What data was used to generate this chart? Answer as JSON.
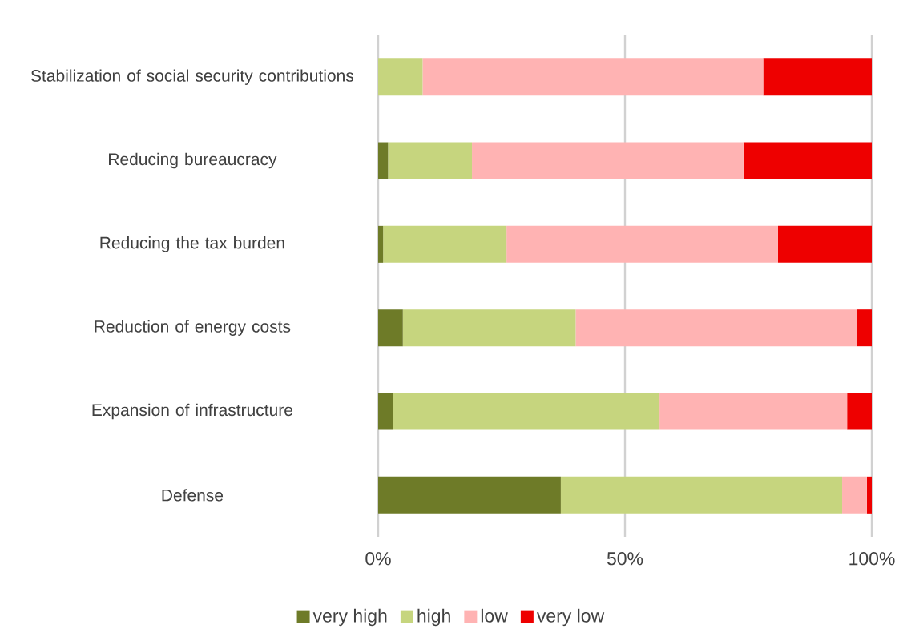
{
  "chart_data": {
    "type": "bar",
    "orientation": "horizontal",
    "stacked": true,
    "categories": [
      "Stabilization of social security contributions",
      "Reducing bureaucracy",
      "Reducing the tax burden",
      "Reduction of energy costs",
      "Expansion of infrastructure",
      "Defense"
    ],
    "series": [
      {
        "name": "very high",
        "color": "#6e7b28",
        "values": [
          0,
          2,
          1,
          5,
          3,
          37
        ]
      },
      {
        "name": "high",
        "color": "#c6d57e",
        "values": [
          9,
          17,
          25,
          35,
          54,
          57
        ]
      },
      {
        "name": "low",
        "color": "#ffb3b3",
        "values": [
          69,
          55,
          55,
          57,
          38,
          5
        ]
      },
      {
        "name": "very low",
        "color": "#ee0000",
        "values": [
          22,
          26,
          19,
          3,
          5,
          1
        ]
      }
    ],
    "xlim": [
      0,
      100
    ],
    "xticks": [
      {
        "value": 0,
        "label": "0%"
      },
      {
        "value": 50,
        "label": "50%"
      },
      {
        "value": 100,
        "label": "100%"
      }
    ],
    "grid": "x",
    "legend": "bottom"
  }
}
